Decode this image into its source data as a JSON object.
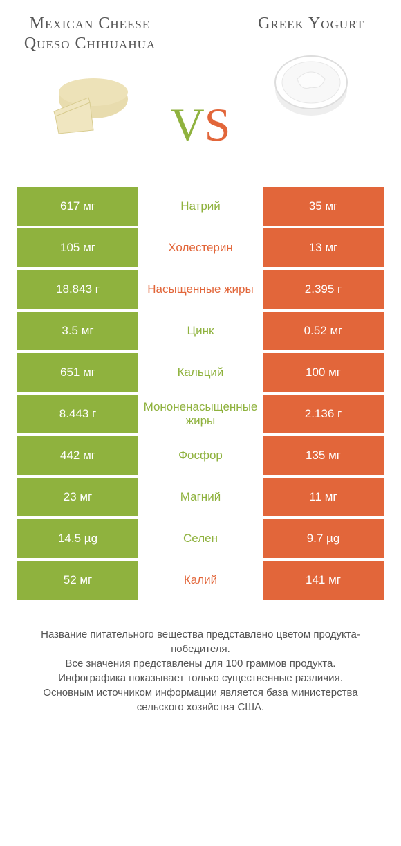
{
  "header": {
    "left_title": "Mexican Cheese Queso Chihuahua",
    "right_title": "Greek Yogurt",
    "vs_v": "V",
    "vs_s": "S"
  },
  "colors": {
    "green": "#8fb23e",
    "orange": "#e2663a",
    "text": "#555555",
    "bg": "#ffffff"
  },
  "rows": [
    {
      "left": "617 мг",
      "mid": "Натрий",
      "right": "35 мг",
      "winner": "left"
    },
    {
      "left": "105 мг",
      "mid": "Холестерин",
      "right": "13 мг",
      "winner": "right"
    },
    {
      "left": "18.843 г",
      "mid": "Насыщенные жиры",
      "right": "2.395 г",
      "winner": "right"
    },
    {
      "left": "3.5 мг",
      "mid": "Цинк",
      "right": "0.52 мг",
      "winner": "left"
    },
    {
      "left": "651 мг",
      "mid": "Кальций",
      "right": "100 мг",
      "winner": "left"
    },
    {
      "left": "8.443 г",
      "mid": "Мононенасыщенные жиры",
      "right": "2.136 г",
      "winner": "left"
    },
    {
      "left": "442 мг",
      "mid": "Фосфор",
      "right": "135 мг",
      "winner": "left"
    },
    {
      "left": "23 мг",
      "mid": "Магний",
      "right": "11 мг",
      "winner": "left"
    },
    {
      "left": "14.5 µg",
      "mid": "Селен",
      "right": "9.7 µg",
      "winner": "left"
    },
    {
      "left": "52 мг",
      "mid": "Калий",
      "right": "141 мг",
      "winner": "right"
    }
  ],
  "footer": {
    "line1": "Название питательного вещества представлено цветом продукта-победителя.",
    "line2": "Все значения представлены для 100 граммов продукта.",
    "line3": "Инфографика показывает только существенные различия.",
    "line4": "Основным источником информации является база министерства сельского хозяйства США."
  }
}
